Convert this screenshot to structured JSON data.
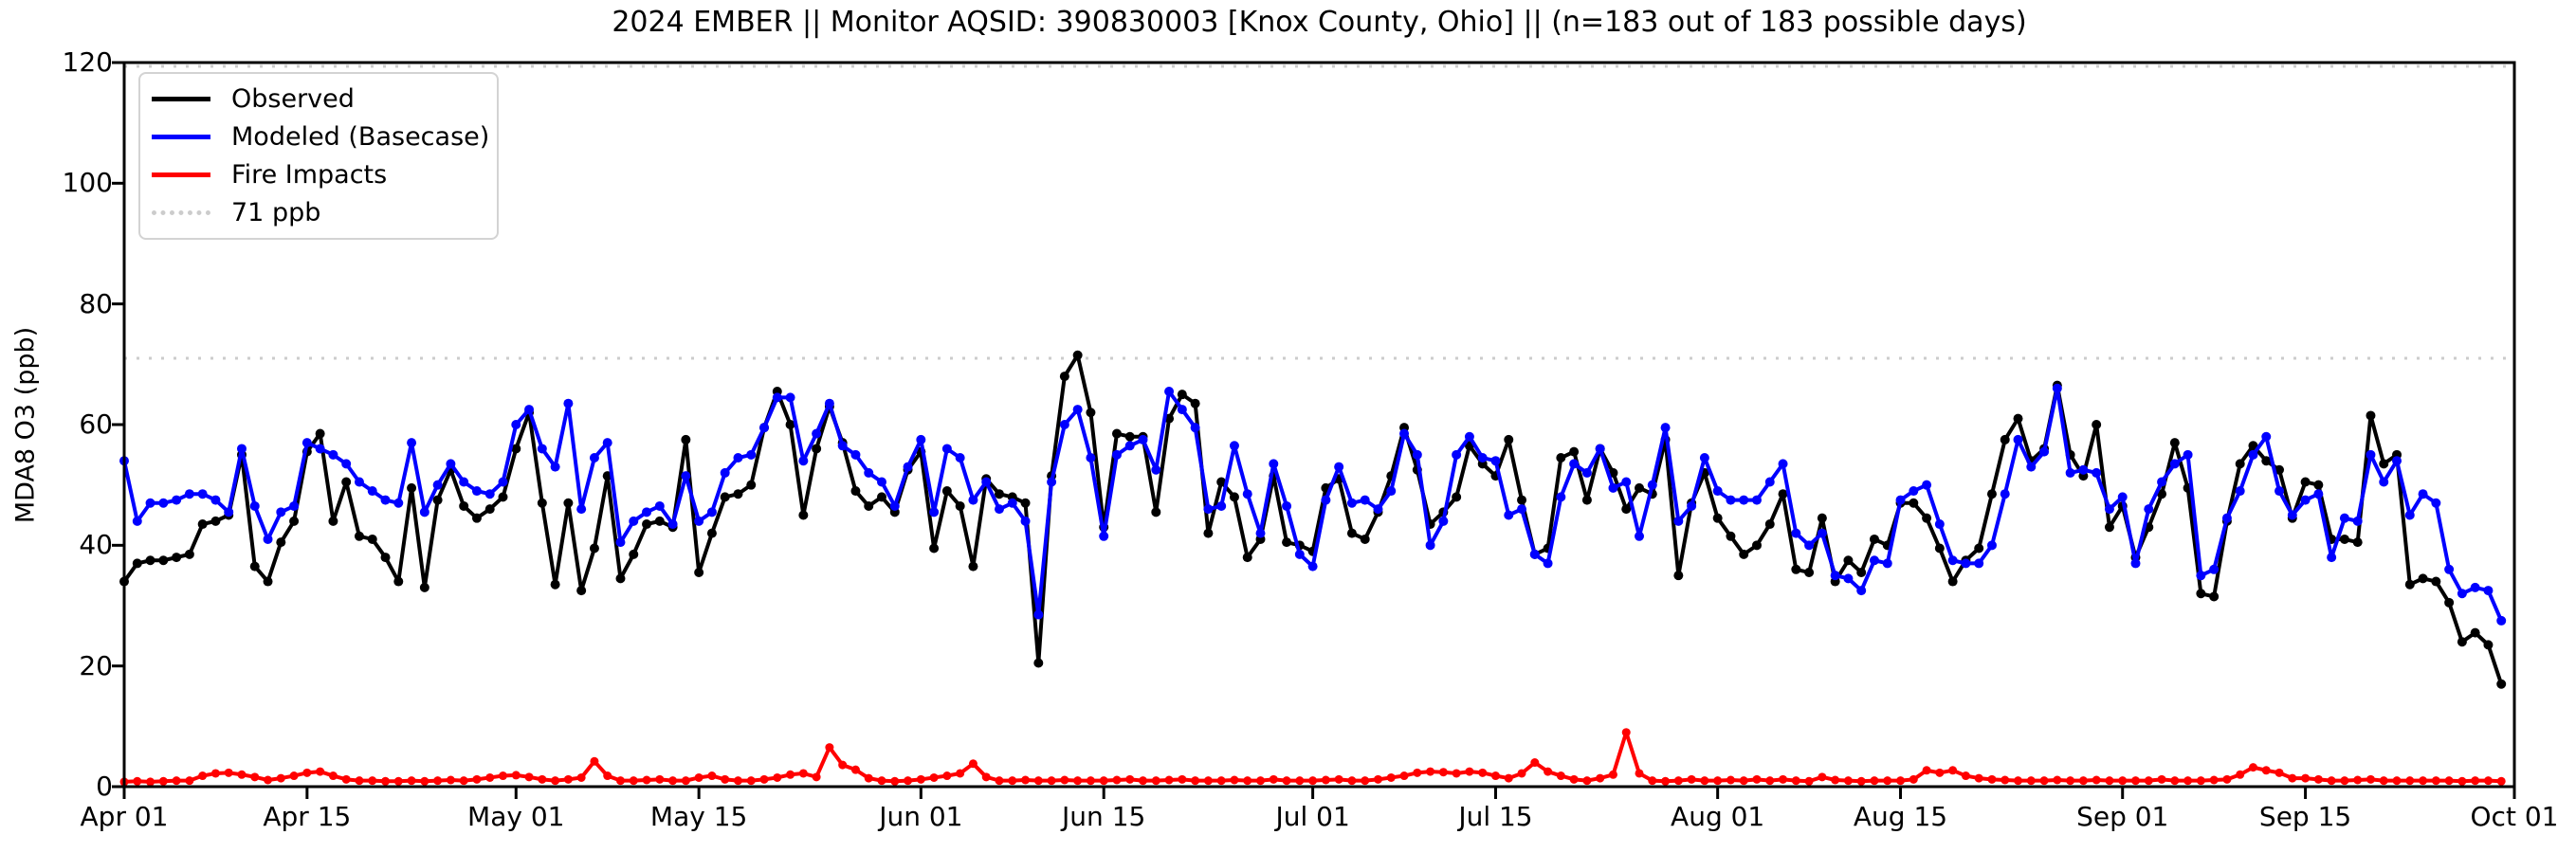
{
  "title": "2024 EMBER || Monitor AQSID: 390830003 [Knox County, Ohio] || (n=183 out of 183 possible days)",
  "ylabel": "MDA8 O3 (ppb)",
  "legend": {
    "observed": "Observed",
    "modeled": "Modeled (Basecase)",
    "fire": "Fire Impacts",
    "threshold": "71 ppb"
  },
  "colors": {
    "observed": "#000000",
    "modeled": "#0000ff",
    "fire": "#ff0000",
    "threshold_line": "#cccccc",
    "legend_border": "#d3d3d3",
    "axis": "#000000"
  },
  "chart_data": {
    "type": "line",
    "title": "2024 EMBER || Monitor AQSID: 390830003 [Knox County, Ohio] || (n=183 out of 183 possible days)",
    "xlabel": "",
    "ylabel": "MDA8 O3 (ppb)",
    "ylim": [
      0,
      120
    ],
    "yticks": [
      0,
      20,
      40,
      60,
      80,
      100,
      120
    ],
    "xtick_labels": [
      "Apr 01",
      "Apr 15",
      "May 01",
      "May 15",
      "Jun 01",
      "Jun 15",
      "Jul 01",
      "Jul 15",
      "Aug 01",
      "Aug 15",
      "Sep 01",
      "Sep 15",
      "Oct 01"
    ],
    "xtick_day_index": [
      0,
      14,
      30,
      44,
      61,
      75,
      91,
      105,
      122,
      136,
      153,
      167,
      183
    ],
    "start_date": "2024-04-01",
    "n_days": 183,
    "threshold_ppb": 71,
    "grid": false,
    "legend_position": "upper left",
    "series": [
      {
        "name": "Observed",
        "color": "#000000",
        "values": [
          34,
          37,
          37.5,
          37.5,
          38,
          38.5,
          43.5,
          44,
          45,
          55,
          36.5,
          34,
          40.5,
          44,
          55.5,
          58.5,
          44,
          50.5,
          41.5,
          41,
          38,
          34,
          49.5,
          33,
          47.5,
          52.5,
          46.5,
          44.5,
          46,
          48,
          56,
          62,
          47,
          33.5,
          47,
          32.5,
          39.5,
          51.5,
          34.5,
          38.5,
          43.5,
          44,
          43,
          57.5,
          35.5,
          42,
          48,
          48.5,
          50,
          59.5,
          65.5,
          60,
          45,
          56,
          63,
          57,
          49,
          46.5,
          48,
          45.5,
          52.5,
          55.5,
          39.5,
          49,
          46.5,
          36.5,
          51,
          48.5,
          48,
          47,
          20.5,
          51.5,
          68,
          71.5,
          62,
          43,
          58.5,
          58,
          58,
          45.5,
          61,
          65,
          63.5,
          42,
          50.5,
          48,
          38,
          41,
          51.5,
          40.5,
          40,
          39,
          49.5,
          51,
          42,
          41,
          45.5,
          51.5,
          59.5,
          52.5,
          43.5,
          45.5,
          48,
          56.5,
          53.5,
          51.5,
          57.5,
          47.5,
          38.5,
          39.5,
          54.5,
          55.5,
          47.5,
          56,
          52,
          46,
          49.5,
          48.5,
          57.5,
          35,
          47,
          52,
          44.5,
          41.5,
          38.5,
          40,
          43.5,
          48.5,
          36,
          35.5,
          44.5,
          34,
          37.5,
          35.5,
          41,
          40,
          47,
          47,
          44.5,
          39.5,
          34,
          37.5,
          39.5,
          48.5,
          57.5,
          61,
          54,
          56,
          66.5,
          55,
          51.5,
          60,
          43,
          46.5,
          38,
          43,
          48.5,
          57,
          49.5,
          32,
          31.5,
          44,
          53.5,
          56.5,
          54,
          52.5,
          44.5,
          50.5,
          50,
          41,
          41,
          40.5,
          61.5,
          53.5,
          55,
          33.5,
          34.5,
          34,
          30.5,
          24,
          25.5,
          23.5,
          17
        ]
      },
      {
        "name": "Modeled (Basecase)",
        "color": "#0000ff",
        "values": [
          54,
          44,
          47,
          47,
          47.5,
          48.5,
          48.5,
          47.5,
          45.5,
          56,
          46.5,
          41,
          45.5,
          46.5,
          57,
          56,
          55,
          53.5,
          50.5,
          49,
          47.5,
          47,
          57,
          45.5,
          50,
          53.5,
          50.5,
          49,
          48.5,
          50.5,
          60,
          62.5,
          56,
          53,
          63.5,
          46,
          54.5,
          57,
          40.5,
          44,
          45.5,
          46.5,
          43.5,
          51.5,
          44,
          45.5,
          52,
          54.5,
          55,
          59.5,
          64.5,
          64.5,
          54,
          58.5,
          63.5,
          56.5,
          55,
          52,
          50.5,
          46.5,
          53,
          57.5,
          45.5,
          56,
          54.5,
          47.5,
          50.5,
          46,
          47,
          44,
          28.5,
          50.5,
          60,
          62.5,
          54.5,
          41.5,
          55,
          56.5,
          57.5,
          52.5,
          65.5,
          62.5,
          59.5,
          46,
          46.5,
          56.5,
          48.5,
          42,
          53.5,
          46.5,
          38.5,
          36.5,
          47.5,
          53,
          47,
          47.5,
          46,
          49,
          58.5,
          55,
          40,
          44,
          55,
          58,
          54.5,
          54,
          45,
          46,
          38.5,
          37,
          48,
          53.5,
          52,
          56,
          49.5,
          50.5,
          41.5,
          50,
          59.5,
          44,
          46.5,
          54.5,
          49,
          47.5,
          47.5,
          47.5,
          50.5,
          53.5,
          42,
          40,
          42,
          35,
          34.5,
          32.5,
          37.5,
          37,
          47.5,
          49,
          50,
          43.5,
          37.5,
          37,
          37,
          40,
          48.5,
          57.5,
          53,
          55.5,
          66,
          52,
          52.5,
          52,
          46,
          48,
          37,
          46,
          50.5,
          53.5,
          55,
          35,
          36,
          44.5,
          49,
          55,
          58,
          49,
          45,
          47.5,
          48.5,
          38,
          44.5,
          44,
          55,
          50.5,
          54,
          45,
          48.5,
          47,
          36,
          32,
          33,
          32.5,
          27.5
        ]
      },
      {
        "name": "Fire Impacts",
        "color": "#ff0000",
        "values": [
          0.8,
          0.9,
          0.8,
          0.9,
          1,
          1,
          1.8,
          2.2,
          2.3,
          2,
          1.6,
          1.1,
          1.4,
          1.8,
          2.3,
          2.5,
          1.8,
          1.2,
          1,
          1,
          0.9,
          0.9,
          1,
          0.9,
          1,
          1.1,
          1,
          1.2,
          1.5,
          1.8,
          1.9,
          1.6,
          1.2,
          1,
          1.2,
          1.5,
          4.2,
          1.8,
          1,
          1,
          1.1,
          1.2,
          1,
          1,
          1.5,
          1.8,
          1.2,
          1,
          1,
          1.2,
          1.5,
          2,
          2.2,
          1.6,
          6.5,
          3.6,
          2.8,
          1.4,
          1,
          0.9,
          1,
          1.2,
          1.5,
          1.8,
          2.2,
          3.8,
          1.6,
          1,
          1,
          1.1,
          1,
          1,
          1.1,
          1,
          1,
          1,
          1.1,
          1.2,
          1,
          1,
          1.1,
          1.2,
          1,
          1,
          1,
          1.1,
          1,
          1,
          1.2,
          1,
          1,
          1,
          1.1,
          1.2,
          1,
          1,
          1.2,
          1.5,
          1.8,
          2.3,
          2.5,
          2.4,
          2.2,
          2.5,
          2.3,
          1.8,
          1.4,
          2.2,
          4,
          2.5,
          1.8,
          1.2,
          1,
          1.4,
          2,
          9,
          2.2,
          1,
          0.9,
          1,
          1.2,
          1,
          1,
          1.1,
          1,
          1.2,
          1,
          1.2,
          1,
          0.9,
          1.6,
          1.1,
          1,
          0.9,
          1,
          1,
          1,
          1.2,
          2.7,
          2.3,
          2.7,
          1.8,
          1.4,
          1.2,
          1.1,
          1,
          1,
          1,
          1.1,
          1,
          1,
          1.1,
          1,
          1,
          1,
          1,
          1.2,
          1,
          1,
          1,
          1.1,
          1.2,
          2,
          3.2,
          2.7,
          2.3,
          1.4,
          1.4,
          1.2,
          1,
          1,
          1.1,
          1.2,
          1,
          1,
          1,
          1,
          1,
          1,
          0.9,
          1,
          1,
          0.9
        ]
      }
    ],
    "layout": {
      "plot_left": 131,
      "plot_right": 2652,
      "plot_top": 66,
      "plot_bottom": 830,
      "marker_radius": 5,
      "line_width": 4
    }
  }
}
